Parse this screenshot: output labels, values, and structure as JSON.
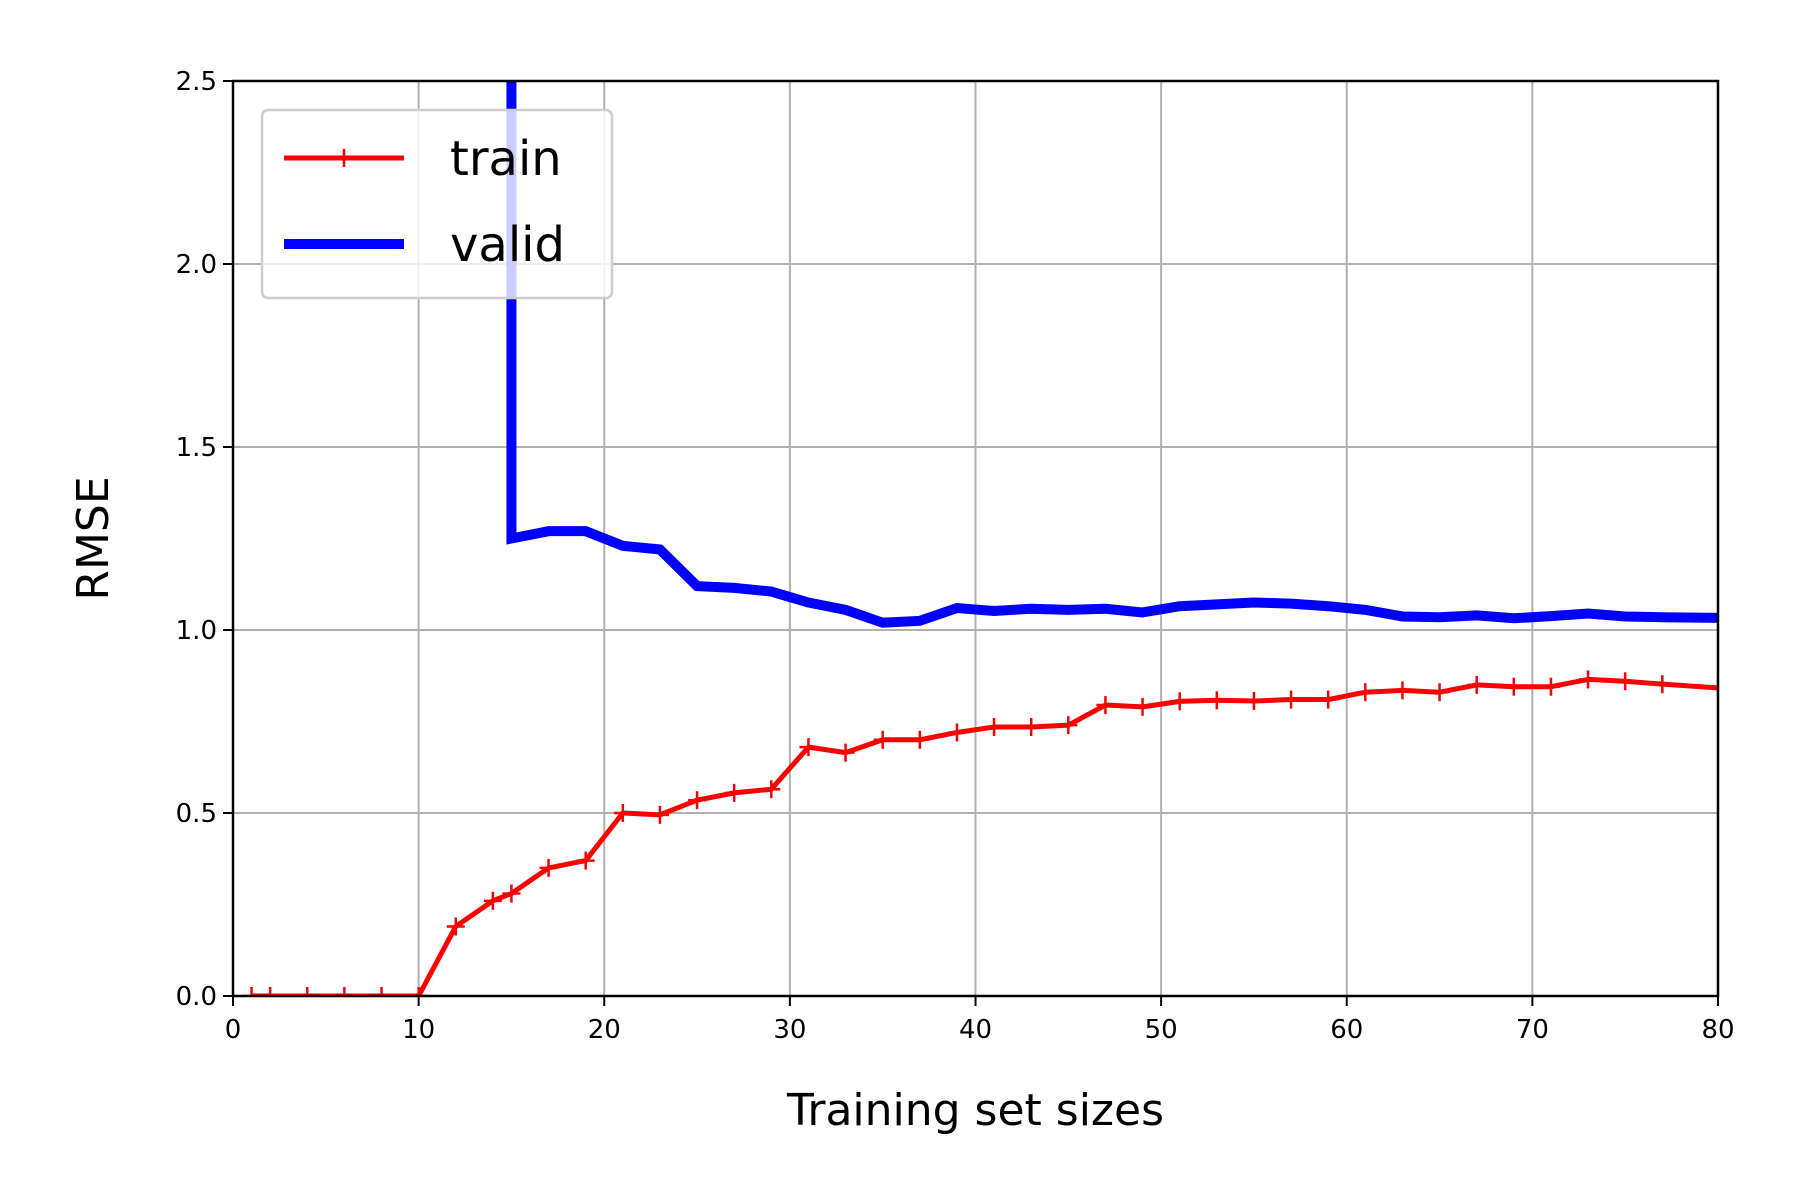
{
  "chart_data": {
    "type": "line",
    "xlabel": "Training set sizes",
    "ylabel": "RMSE",
    "xlim": [
      0,
      80
    ],
    "ylim": [
      0,
      2.5
    ],
    "x_ticks": [
      0,
      10,
      20,
      30,
      40,
      50,
      60,
      70,
      80
    ],
    "y_ticks": [
      0.0,
      0.5,
      1.0,
      1.5,
      2.0,
      2.5
    ],
    "x_tick_labels": [
      "0",
      "10",
      "20",
      "30",
      "40",
      "50",
      "60",
      "70",
      "80"
    ],
    "y_tick_labels": [
      "0.0",
      "0.5",
      "1.0",
      "1.5",
      "2.0",
      "2.5"
    ],
    "grid": true,
    "legend_position": "top-left",
    "series": [
      {
        "name": "train",
        "color": "#ff0000",
        "marker": "plus",
        "x": [
          1,
          2,
          4,
          6,
          8,
          10,
          12,
          14,
          15,
          17,
          19,
          21,
          23,
          25,
          27,
          29,
          31,
          33,
          35,
          37,
          39,
          41,
          43,
          45,
          47,
          49,
          51,
          53,
          55,
          57,
          59,
          61,
          63,
          65,
          67,
          69,
          71,
          73,
          75,
          77,
          80
        ],
        "y": [
          0,
          0,
          0,
          0,
          0,
          0,
          0.19,
          0.26,
          0.28,
          0.35,
          0.37,
          0.5,
          0.495,
          0.535,
          0.555,
          0.565,
          0.68,
          0.665,
          0.7,
          0.7,
          0.72,
          0.735,
          0.735,
          0.74,
          0.795,
          0.79,
          0.805,
          0.808,
          0.806,
          0.81,
          0.81,
          0.83,
          0.835,
          0.83,
          0.85,
          0.845,
          0.845,
          0.865,
          0.86,
          0.852,
          0.842
        ]
      },
      {
        "name": "valid",
        "color": "#0000ff",
        "marker": "none",
        "x": [
          15,
          15,
          17,
          19,
          21,
          23,
          25,
          27,
          29,
          31,
          33,
          35,
          37,
          39,
          41,
          43,
          45,
          47,
          49,
          51,
          53,
          55,
          57,
          59,
          61,
          63,
          65,
          67,
          69,
          71,
          73,
          75,
          77,
          80
        ],
        "y": [
          3.2,
          1.25,
          1.27,
          1.27,
          1.23,
          1.22,
          1.12,
          1.115,
          1.105,
          1.075,
          1.055,
          1.02,
          1.025,
          1.06,
          1.052,
          1.058,
          1.055,
          1.058,
          1.048,
          1.065,
          1.07,
          1.075,
          1.072,
          1.065,
          1.055,
          1.037,
          1.035,
          1.04,
          1.032,
          1.038,
          1.045,
          1.037,
          1.035,
          1.033
        ]
      }
    ]
  }
}
